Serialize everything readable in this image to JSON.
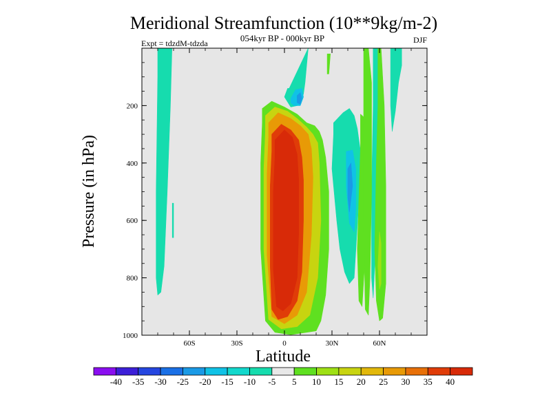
{
  "chart_data": {
    "type": "heatmap",
    "title": "Meridional Streamfunction (10**9kg/m-2)",
    "subtitle": "054kyr BP - 000kyr BP",
    "left_label": "Expt = tdzdM-tdzda",
    "right_label": "DJF",
    "xlabel": "Latitude",
    "ylabel": "Pressure (in hPa)",
    "xlim": [
      -90,
      90
    ],
    "ylim": [
      0,
      1000
    ],
    "y_inverted": true,
    "x_ticks": [
      {
        "value": -60,
        "label": "60S"
      },
      {
        "value": -30,
        "label": "30S"
      },
      {
        "value": 0,
        "label": "0"
      },
      {
        "value": 30,
        "label": "30N"
      },
      {
        "value": 60,
        "label": "60N"
      }
    ],
    "y_ticks": [
      {
        "value": 200,
        "label": "200"
      },
      {
        "value": 400,
        "label": "400"
      },
      {
        "value": 600,
        "label": "600"
      },
      {
        "value": 800,
        "label": "800"
      },
      {
        "value": 1000,
        "label": "1000"
      }
    ],
    "background_color": "#e6e6e6",
    "contour_levels": [
      "-40",
      "-35",
      "-30",
      "-25",
      "-20",
      "-15",
      "-10",
      "-5",
      "5",
      "10",
      "15",
      "20",
      "25",
      "30",
      "35",
      "40"
    ],
    "level_colors": [
      "#8a0ef0",
      "#3c1fd8",
      "#2546e0",
      "#1a70e6",
      "#1a9ae6",
      "#10c2e6",
      "#12d8cc",
      "#16dcae",
      "#e8e8e8",
      "#5fe020",
      "#9ee014",
      "#c8d410",
      "#e2b80a",
      "#e89a06",
      "#e87008",
      "#e03c08",
      "#d82a08"
    ],
    "contour_regions": [
      {
        "name": "neg-band-75S",
        "color": "#16dcae",
        "lat": [
          -80,
          -71,
          -72,
          -74,
          -76,
          -78,
          -80,
          -81,
          -81,
          -80
        ],
        "p": [
          0,
          0,
          200,
          500,
          760,
          850,
          860,
          800,
          500,
          100
        ]
      },
      {
        "name": "neg-sliver-65S",
        "color": "#16dcae",
        "lat": [
          -70.8,
          -70.0,
          -70.0,
          -70.8
        ],
        "p": [
          540,
          540,
          660,
          660
        ]
      },
      {
        "name": "neg-upper-eq",
        "color": "#16dcae",
        "lat": [
          3,
          15,
          15,
          13,
          12,
          8,
          4,
          0,
          2
        ],
        "p": [
          140,
          0,
          0,
          120,
          160,
          200,
          205,
          170,
          140
        ]
      },
      {
        "name": "neg-upper-eq-10",
        "color": "#10c2e6",
        "lat": [
          4,
          7,
          11,
          12,
          10,
          6,
          4
        ],
        "p": [
          175,
          145,
          140,
          170,
          200,
          200,
          190
        ]
      },
      {
        "name": "neg-upper-eq-15",
        "color": "#1a9ae6",
        "lat": [
          8,
          10,
          11,
          10,
          8
        ],
        "p": [
          165,
          155,
          175,
          195,
          190
        ]
      },
      {
        "name": "neg-band-40N",
        "color": "#16dcae",
        "lat": [
          31,
          37,
          41,
          44,
          46,
          48,
          48,
          46,
          44,
          41,
          38,
          35,
          33,
          30,
          31
        ],
        "p": [
          260,
          225,
          210,
          235,
          280,
          360,
          420,
          620,
          800,
          820,
          780,
          700,
          600,
          420,
          300
        ]
      },
      {
        "name": "neg-band-40N-10",
        "color": "#10c2e6",
        "lat": [
          39,
          43,
          45,
          45,
          44,
          41,
          39
        ],
        "p": [
          360,
          355,
          420,
          560,
          640,
          610,
          480
        ]
      },
      {
        "name": "neg-band-40N-15",
        "color": "#1a9ae6",
        "lat": [
          40,
          42,
          43,
          41,
          40
        ],
        "p": [
          420,
          400,
          480,
          570,
          520
        ]
      },
      {
        "name": "neg-band-60N",
        "color": "#16dcae",
        "lat": [
          56,
          59,
          60,
          59,
          58,
          57,
          56,
          55,
          55,
          56
        ],
        "p": [
          0,
          0,
          150,
          350,
          560,
          760,
          870,
          800,
          500,
          200
        ]
      },
      {
        "name": "neg-band-70N",
        "color": "#16dcae",
        "lat": [
          67,
          74,
          74,
          72,
          70,
          68,
          67
        ],
        "p": [
          0,
          0,
          60,
          120,
          220,
          290,
          200
        ]
      },
      {
        "name": "pos-outer",
        "color": "#5fe020",
        "lat": [
          -14,
          -8,
          0,
          8,
          14,
          19,
          22,
          24,
          26,
          28,
          28,
          26,
          23,
          20,
          14,
          4,
          -6,
          -12,
          -15,
          -15,
          -14
        ],
        "p": [
          210,
          185,
          205,
          230,
          260,
          270,
          290,
          320,
          380,
          500,
          700,
          860,
          950,
          985,
          990,
          998,
          990,
          950,
          700,
          400,
          260
        ]
      },
      {
        "name": "pos-15",
        "color": "#c8d410",
        "lat": [
          -12,
          -6,
          2,
          8,
          14,
          18,
          21,
          22,
          23,
          21,
          16,
          8,
          -2,
          -10,
          -13,
          -13,
          -12
        ],
        "p": [
          235,
          205,
          220,
          245,
          275,
          300,
          330,
          400,
          600,
          800,
          930,
          970,
          978,
          945,
          700,
          420,
          290
        ]
      },
      {
        "name": "pos-25",
        "color": "#e89a06",
        "lat": [
          -10,
          -4,
          4,
          10,
          15,
          17,
          18,
          17,
          14,
          8,
          0,
          -8,
          -11,
          -11,
          -10
        ],
        "p": [
          260,
          225,
          245,
          270,
          300,
          350,
          450,
          650,
          850,
          930,
          960,
          935,
          720,
          440,
          310
        ]
      },
      {
        "name": "pos-35",
        "color": "#e03c08",
        "lat": [
          -8,
          -2,
          4,
          9,
          11,
          12,
          12,
          11,
          8,
          2,
          -4,
          -8,
          -9,
          -9,
          -8
        ],
        "p": [
          300,
          265,
          285,
          320,
          380,
          460,
          600,
          780,
          880,
          935,
          945,
          910,
          760,
          480,
          360
        ]
      },
      {
        "name": "pos-40",
        "color": "#d82a08",
        "lat": [
          -6,
          0,
          5,
          8,
          9,
          9,
          8,
          4,
          -1,
          -5,
          -7,
          -7,
          -6
        ],
        "p": [
          320,
          285,
          310,
          370,
          460,
          640,
          800,
          890,
          915,
          900,
          770,
          500,
          380
        ]
      },
      {
        "name": "pos-upper-15N",
        "color": "#5fe020",
        "lat": [
          27,
          29,
          28,
          27
        ],
        "p": [
          20,
          20,
          90,
          90
        ]
      },
      {
        "name": "pos-40N-right",
        "color": "#5fe020",
        "lat": [
          48,
          50,
          52,
          53,
          52,
          51,
          49,
          47,
          46,
          47,
          48
        ],
        "p": [
          230,
          240,
          320,
          420,
          560,
          720,
          900,
          880,
          700,
          520,
          340
        ]
      },
      {
        "name": "pos-50N",
        "color": "#5fe020",
        "lat": [
          50,
          53,
          55,
          55,
          54,
          53,
          51,
          50,
          50
        ],
        "p": [
          0,
          0,
          120,
          500,
          800,
          930,
          910,
          600,
          200
        ]
      },
      {
        "name": "pos-60N",
        "color": "#5fe020",
        "lat": [
          59,
          61,
          63,
          64,
          64,
          62,
          60,
          58,
          57,
          58,
          59
        ],
        "p": [
          0,
          0,
          200,
          480,
          820,
          940,
          950,
          880,
          700,
          400,
          200
        ]
      },
      {
        "name": "pos-60N-core",
        "color": "#9ee014",
        "lat": [
          60,
          61,
          61,
          60,
          59
        ],
        "p": [
          640,
          680,
          820,
          840,
          760
        ]
      }
    ]
  },
  "colorbar": {
    "labels": [
      "-40",
      "-35",
      "-30",
      "-25",
      "-20",
      "-15",
      "-10",
      "-5",
      "5",
      "10",
      "15",
      "20",
      "25",
      "30",
      "35",
      "40"
    ]
  }
}
